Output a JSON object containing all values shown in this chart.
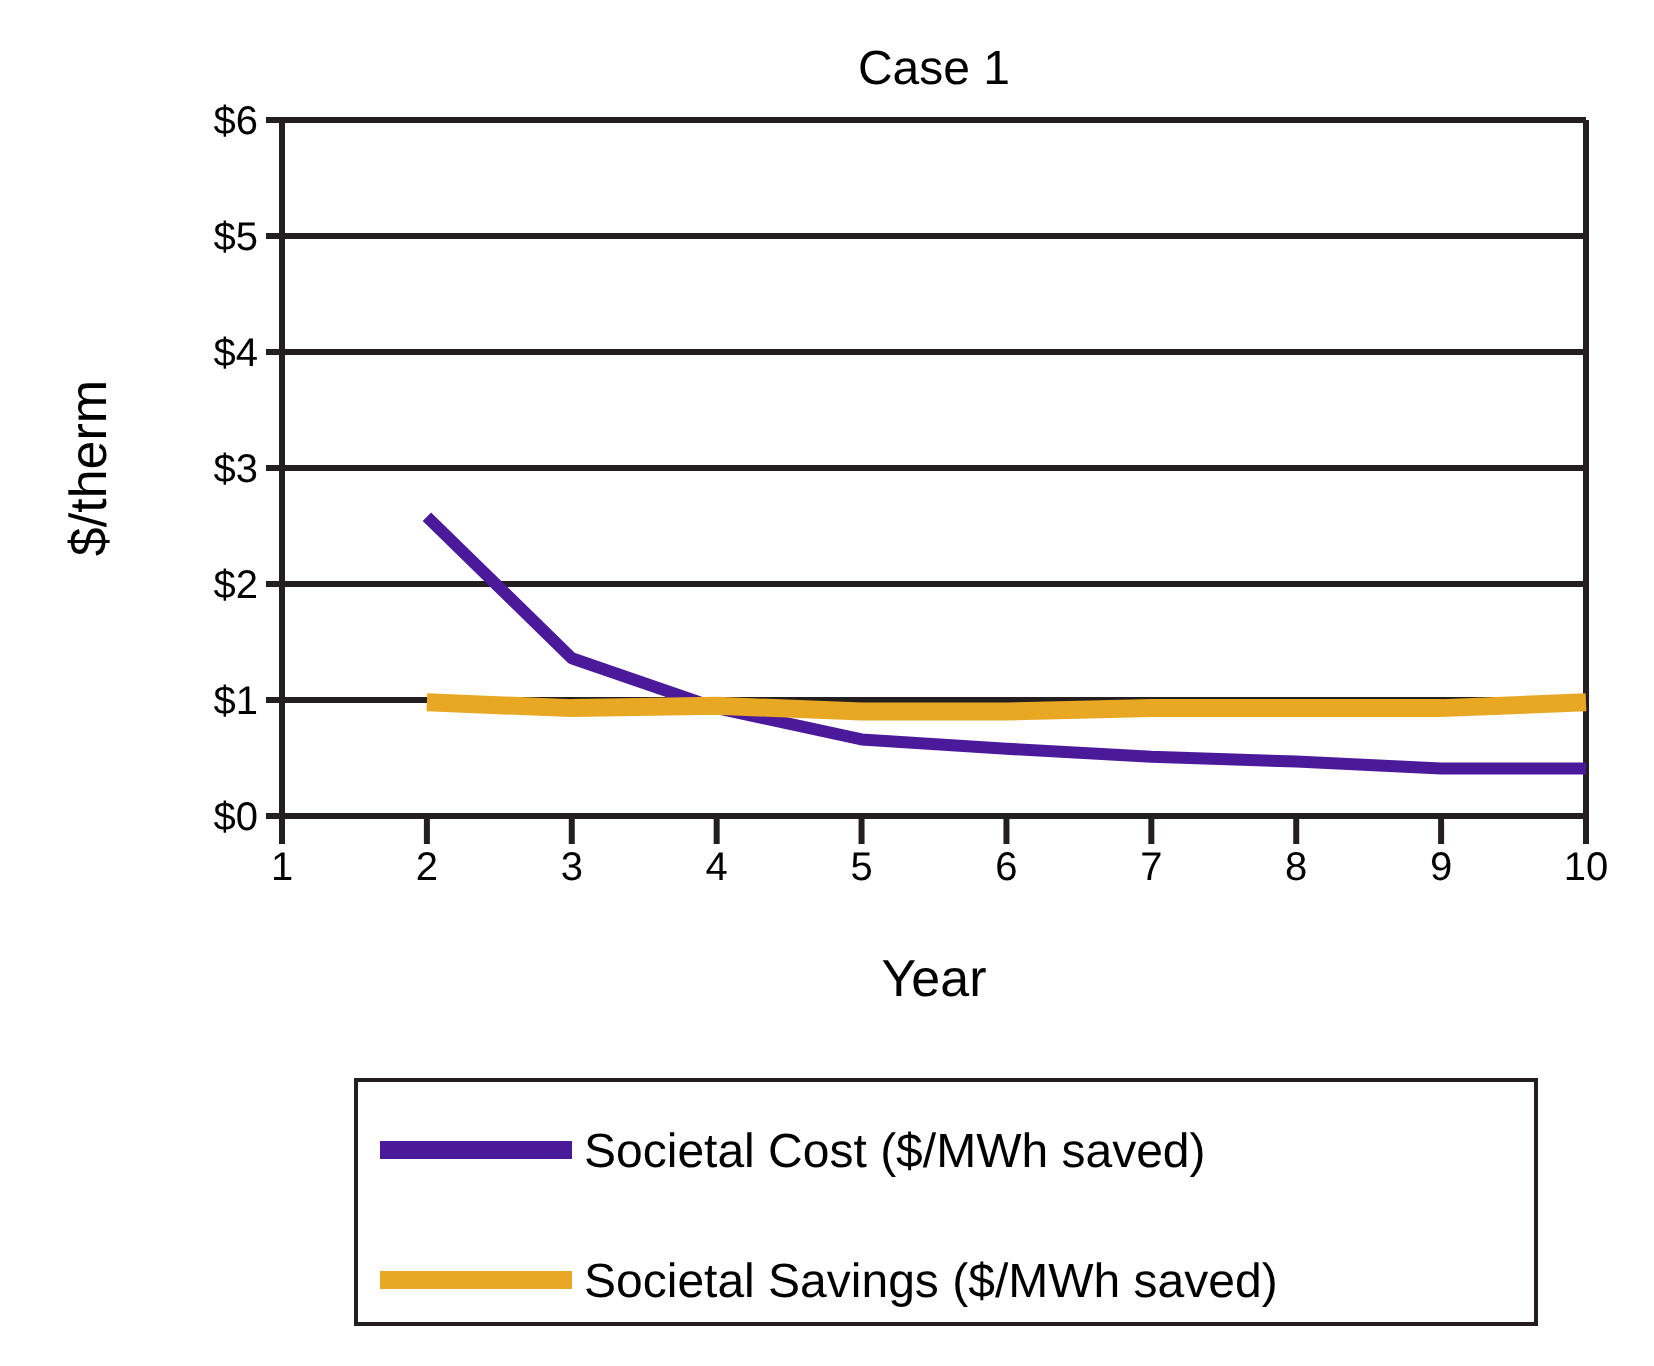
{
  "chart_data": {
    "type": "line",
    "title": "Case 1",
    "xlabel": "Year",
    "ylabel": "$/therm",
    "x": [
      2,
      3,
      4,
      5,
      6,
      7,
      8,
      9,
      10
    ],
    "series": [
      {
        "name": "Societal Cost ($/MWh saved)",
        "color": "#4b1a9a",
        "values": [
          2.58,
          1.36,
          0.93,
          0.66,
          0.58,
          0.51,
          0.47,
          0.41,
          0.41
        ]
      },
      {
        "name": "Societal Savings ($/MWh saved)",
        "color": "#e8a823",
        "values": [
          0.98,
          0.93,
          0.95,
          0.9,
          0.9,
          0.93,
          0.93,
          0.93,
          0.98
        ]
      }
    ],
    "xlim": [
      1,
      10
    ],
    "xticks": [
      1,
      2,
      3,
      4,
      5,
      6,
      7,
      8,
      9,
      10
    ],
    "ylim": [
      0,
      6
    ],
    "yticks": [
      {
        "value": 0,
        "label": "$0"
      },
      {
        "value": 1,
        "label": "$1"
      },
      {
        "value": 2,
        "label": "$2"
      },
      {
        "value": 3,
        "label": "$3"
      },
      {
        "value": 4,
        "label": "$4"
      },
      {
        "value": 5,
        "label": "$5"
      },
      {
        "value": 6,
        "label": "$6"
      }
    ],
    "grid": "y",
    "legend": "bottom",
    "marker": "none",
    "line_style": "solid"
  }
}
